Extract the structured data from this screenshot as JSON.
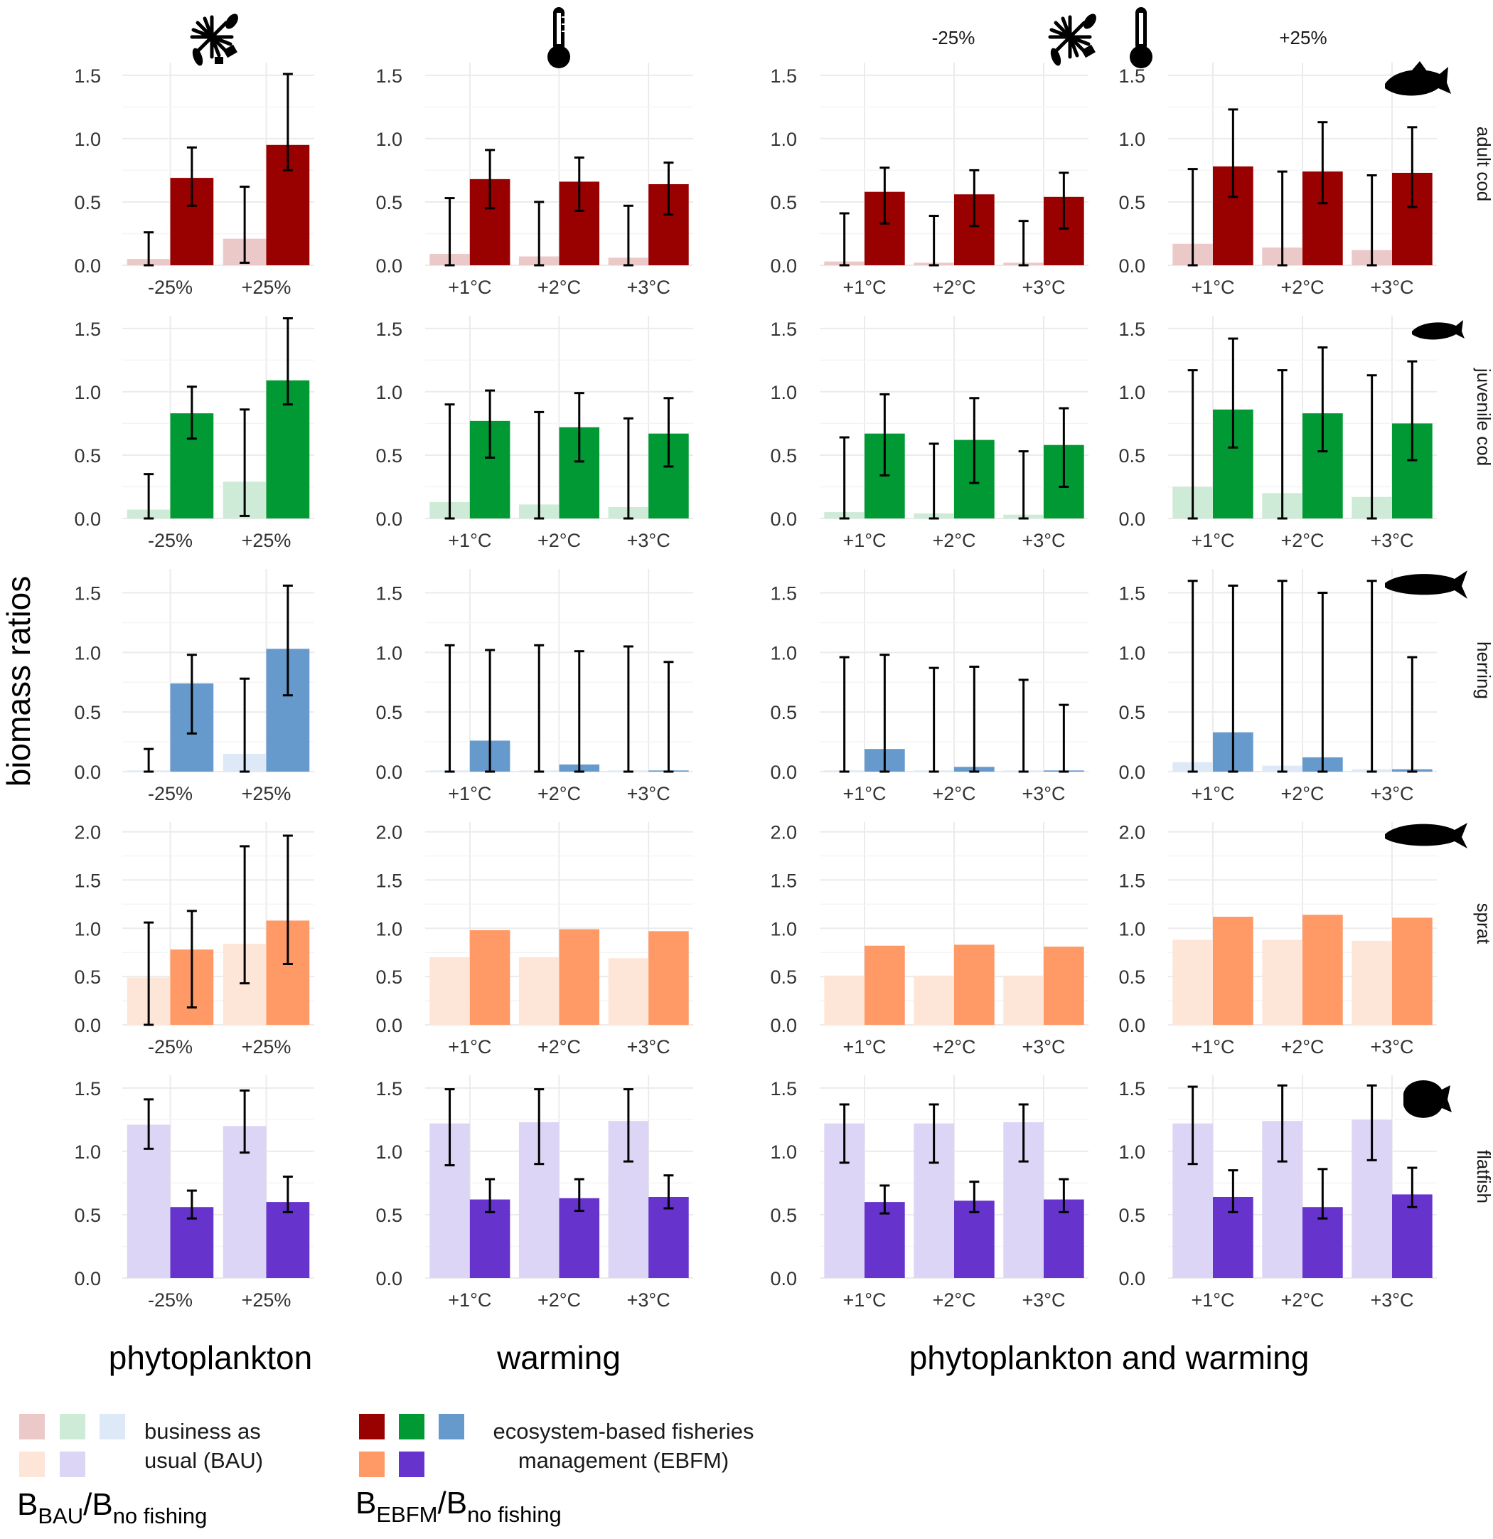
{
  "chart_data": {
    "type": "bar",
    "ylabel": "biomass ratios",
    "column_groups": [
      "phytoplankton",
      "warming",
      "phytoplankton and warming"
    ],
    "top_annotations": [
      "-25%",
      "+25%"
    ],
    "colors": {
      "adult cod": {
        "bau": "#ecc9c9",
        "ebfm": "#990000"
      },
      "juvenile cod": {
        "bau": "#cdebd6",
        "ebfm": "#009933"
      },
      "herring": {
        "bau": "#dde9f6",
        "ebfm": "#6699cc"
      },
      "sprat": {
        "bau": "#fde5d8",
        "ebfm": "#ff9966"
      },
      "flatfish": {
        "bau": "#ddd5f5",
        "ebfm": "#6633cc"
      }
    },
    "columns": [
      {
        "id": "phyto",
        "categories": [
          "-25%",
          "+25%"
        ]
      },
      {
        "id": "warm",
        "categories": [
          "+1°C",
          "+2°C",
          "+3°C"
        ]
      },
      {
        "id": "pw_minus",
        "categories": [
          "+1°C",
          "+2°C",
          "+3°C"
        ]
      },
      {
        "id": "pw_plus",
        "categories": [
          "+1°C",
          "+2°C",
          "+3°C"
        ]
      }
    ],
    "rows": [
      {
        "species": "adult cod",
        "ylim": [
          0,
          1.6
        ],
        "yticks": [
          "0.0",
          "0.5",
          "1.0",
          "1.5"
        ],
        "panels": [
          {
            "bau": [
              0.05,
              0.21
            ],
            "ebfm": [
              0.69,
              0.95
            ],
            "bau_err": [
              [
                0.0,
                0.26
              ],
              [
                0.02,
                0.62
              ]
            ],
            "ebfm_err": [
              [
                0.47,
                0.93
              ],
              [
                0.75,
                1.51
              ]
            ]
          },
          {
            "bau": [
              0.09,
              0.07,
              0.06
            ],
            "ebfm": [
              0.68,
              0.66,
              0.64
            ],
            "bau_err": [
              [
                0.0,
                0.53
              ],
              [
                0.0,
                0.5
              ],
              [
                0.0,
                0.47
              ]
            ],
            "ebfm_err": [
              [
                0.45,
                0.91
              ],
              [
                0.43,
                0.85
              ],
              [
                0.4,
                0.81
              ]
            ]
          },
          {
            "bau": [
              0.03,
              0.02,
              0.02
            ],
            "ebfm": [
              0.58,
              0.56,
              0.54
            ],
            "bau_err": [
              [
                0.0,
                0.41
              ],
              [
                0.0,
                0.39
              ],
              [
                0.0,
                0.35
              ]
            ],
            "ebfm_err": [
              [
                0.33,
                0.77
              ],
              [
                0.31,
                0.75
              ],
              [
                0.29,
                0.73
              ]
            ]
          },
          {
            "bau": [
              0.17,
              0.14,
              0.12
            ],
            "ebfm": [
              0.78,
              0.74,
              0.73
            ],
            "bau_err": [
              [
                0.0,
                0.76
              ],
              [
                0.0,
                0.74
              ],
              [
                0.0,
                0.71
              ]
            ],
            "ebfm_err": [
              [
                0.54,
                1.23
              ],
              [
                0.49,
                1.13
              ],
              [
                0.46,
                1.09
              ]
            ]
          }
        ]
      },
      {
        "species": "juvenile cod",
        "ylim": [
          0,
          1.6
        ],
        "yticks": [
          "0.0",
          "0.5",
          "1.0",
          "1.5"
        ],
        "panels": [
          {
            "bau": [
              0.07,
              0.29
            ],
            "ebfm": [
              0.83,
              1.09
            ],
            "bau_err": [
              [
                0.0,
                0.35
              ],
              [
                0.02,
                0.86
              ]
            ],
            "ebfm_err": [
              [
                0.63,
                1.04
              ],
              [
                0.9,
                1.58
              ]
            ]
          },
          {
            "bau": [
              0.13,
              0.11,
              0.09
            ],
            "ebfm": [
              0.77,
              0.72,
              0.67
            ],
            "bau_err": [
              [
                0.0,
                0.9
              ],
              [
                0.0,
                0.84
              ],
              [
                0.0,
                0.79
              ]
            ],
            "ebfm_err": [
              [
                0.48,
                1.01
              ],
              [
                0.45,
                0.99
              ],
              [
                0.41,
                0.95
              ]
            ]
          },
          {
            "bau": [
              0.05,
              0.04,
              0.03
            ],
            "ebfm": [
              0.67,
              0.62,
              0.58
            ],
            "bau_err": [
              [
                0.0,
                0.64
              ],
              [
                0.0,
                0.59
              ],
              [
                0.0,
                0.53
              ]
            ],
            "ebfm_err": [
              [
                0.34,
                0.98
              ],
              [
                0.28,
                0.95
              ],
              [
                0.25,
                0.87
              ]
            ]
          },
          {
            "bau": [
              0.25,
              0.2,
              0.17
            ],
            "ebfm": [
              0.86,
              0.83,
              0.75
            ],
            "bau_err": [
              [
                0.0,
                1.17
              ],
              [
                0.0,
                1.17
              ],
              [
                0.0,
                1.13
              ]
            ],
            "ebfm_err": [
              [
                0.56,
                1.42
              ],
              [
                0.53,
                1.35
              ],
              [
                0.46,
                1.24
              ]
            ]
          }
        ]
      },
      {
        "species": "herring",
        "ylim": [
          0,
          1.7
        ],
        "yticks": [
          "0.0",
          "0.5",
          "1.0",
          "1.5"
        ],
        "panels": [
          {
            "bau": [
              0.01,
              0.15
            ],
            "ebfm": [
              0.74,
              1.03
            ],
            "bau_err": [
              [
                0.0,
                0.19
              ],
              [
                0.0,
                0.78
              ]
            ],
            "ebfm_err": [
              [
                0.32,
                0.98
              ],
              [
                0.64,
                1.56
              ]
            ]
          },
          {
            "bau": [
              0.01,
              0.01,
              0.01
            ],
            "ebfm": [
              0.26,
              0.06,
              0.01
            ],
            "bau_err": [
              [
                0.0,
                1.06
              ],
              [
                0.0,
                1.06
              ],
              [
                0.0,
                1.05
              ]
            ],
            "ebfm_err": [
              [
                0.0,
                1.02
              ],
              [
                0.0,
                1.01
              ],
              [
                0.0,
                0.92
              ]
            ]
          },
          {
            "bau": [
              0.01,
              0.01,
              0.01
            ],
            "ebfm": [
              0.19,
              0.04,
              0.01
            ],
            "bau_err": [
              [
                0.0,
                0.96
              ],
              [
                0.0,
                0.87
              ],
              [
                0.0,
                0.77
              ]
            ],
            "ebfm_err": [
              [
                0.0,
                0.98
              ],
              [
                0.0,
                0.88
              ],
              [
                0.0,
                0.56
              ]
            ]
          },
          {
            "bau": [
              0.08,
              0.05,
              0.02
            ],
            "ebfm": [
              0.33,
              0.12,
              0.02
            ],
            "bau_err": [
              [
                0.0,
                1.6
              ],
              [
                0.0,
                1.6
              ],
              [
                0.0,
                1.6
              ]
            ],
            "ebfm_err": [
              [
                0.0,
                1.56
              ],
              [
                0.0,
                1.5
              ],
              [
                0.0,
                0.96
              ]
            ]
          }
        ]
      },
      {
        "species": "sprat",
        "ylim": [
          0,
          2.1
        ],
        "yticks": [
          "0.0",
          "0.5",
          "1.0",
          "1.5",
          "2.0"
        ],
        "panels": [
          {
            "bau": [
              0.49,
              0.84
            ],
            "ebfm": [
              0.78,
              1.08
            ],
            "bau_err": [
              [
                0.0,
                1.06
              ],
              [
                0.43,
                1.85
              ]
            ],
            "ebfm_err": [
              [
                0.18,
                1.18
              ],
              [
                0.63,
                1.96
              ]
            ]
          },
          {
            "bau": [
              0.7,
              0.7,
              0.69
            ],
            "ebfm": [
              0.98,
              0.99,
              0.97
            ],
            "bau_err": [],
            "ebfm_err": []
          },
          {
            "bau": [
              0.51,
              0.51,
              0.51
            ],
            "ebfm": [
              0.82,
              0.83,
              0.81
            ],
            "bau_err": [],
            "ebfm_err": []
          },
          {
            "bau": [
              0.88,
              0.88,
              0.87
            ],
            "ebfm": [
              1.12,
              1.14,
              1.11
            ],
            "bau_err": [],
            "ebfm_err": []
          }
        ]
      },
      {
        "species": "flatfish",
        "ylim": [
          0,
          1.6
        ],
        "yticks": [
          "0.0",
          "0.5",
          "1.0",
          "1.5"
        ],
        "panels": [
          {
            "bau": [
              1.21,
              1.2
            ],
            "ebfm": [
              0.56,
              0.6
            ],
            "bau_err": [
              [
                1.02,
                1.41
              ],
              [
                0.99,
                1.48
              ]
            ],
            "ebfm_err": [
              [
                0.47,
                0.69
              ],
              [
                0.52,
                0.8
              ]
            ]
          },
          {
            "bau": [
              1.22,
              1.23,
              1.24
            ],
            "ebfm": [
              0.62,
              0.63,
              0.64
            ],
            "bau_err": [
              [
                0.89,
                1.49
              ],
              [
                0.9,
                1.49
              ],
              [
                0.92,
                1.49
              ]
            ],
            "ebfm_err": [
              [
                0.52,
                0.78
              ],
              [
                0.53,
                0.78
              ],
              [
                0.55,
                0.81
              ]
            ]
          },
          {
            "bau": [
              1.22,
              1.22,
              1.23
            ],
            "ebfm": [
              0.6,
              0.61,
              0.62
            ],
            "bau_err": [
              [
                0.91,
                1.37
              ],
              [
                0.91,
                1.37
              ],
              [
                0.92,
                1.37
              ]
            ],
            "ebfm_err": [
              [
                0.51,
                0.73
              ],
              [
                0.52,
                0.76
              ],
              [
                0.52,
                0.78
              ]
            ]
          },
          {
            "bau": [
              1.22,
              1.24,
              1.25
            ],
            "ebfm": [
              0.64,
              0.56,
              0.66
            ],
            "bau_err": [
              [
                0.9,
                1.51
              ],
              [
                0.92,
                1.52
              ],
              [
                0.93,
                1.52
              ]
            ],
            "ebfm_err": [
              [
                0.52,
                0.85
              ],
              [
                0.47,
                0.86
              ],
              [
                0.56,
                0.87
              ]
            ]
          }
        ]
      }
    ]
  },
  "legend": {
    "bau_text": [
      "business as",
      "usual (BAU)"
    ],
    "ebfm_text": [
      "ecosystem-based fisheries",
      "management (EBFM)"
    ],
    "bau_ratio": {
      "main": "B",
      "sub1": "BAU",
      "slash": "/B",
      "sub2": "no fishing"
    },
    "ebfm_ratio": {
      "main": "B",
      "sub1": "EBFM",
      "slash": "/B",
      "sub2": "no fishing"
    }
  }
}
